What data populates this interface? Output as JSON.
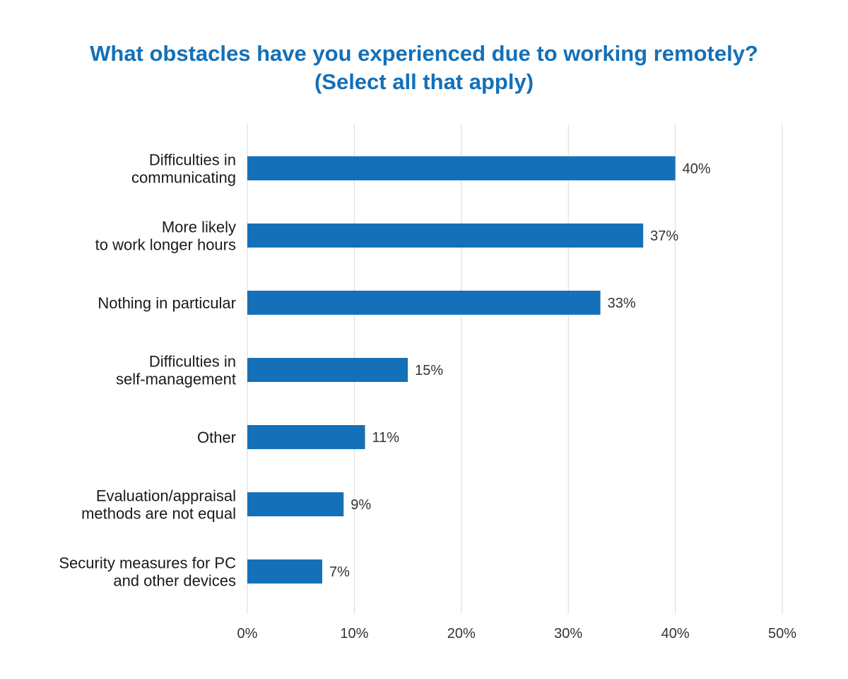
{
  "chart_data": {
    "type": "bar",
    "orientation": "horizontal",
    "title": "What obstacles have you experienced due to working remotely?",
    "subtitle": "(Select all that apply)",
    "categories": [
      [
        "Difficulties in",
        "communicating"
      ],
      [
        "More likely",
        "to work longer hours"
      ],
      [
        "Nothing in particular"
      ],
      [
        "Difficulties in",
        "self-management"
      ],
      [
        "Other"
      ],
      [
        "Evaluation/appraisal",
        "methods are not equal"
      ],
      [
        "Security measures for PC",
        "and other devices"
      ]
    ],
    "values": [
      40,
      37,
      33,
      15,
      11,
      9,
      7
    ],
    "value_labels": [
      "40%",
      "37%",
      "33%",
      "15%",
      "11%",
      "9%",
      "7%"
    ],
    "xlim": [
      0,
      50
    ],
    "x_ticks": [
      0,
      10,
      20,
      30,
      40,
      50
    ],
    "x_tick_labels": [
      "0%",
      "10%",
      "20%",
      "30%",
      "40%",
      "50%"
    ],
    "grid": true,
    "colors": {
      "bar": "#1470b8",
      "title": "#1470b8",
      "grid": "#d9d9d9"
    }
  }
}
